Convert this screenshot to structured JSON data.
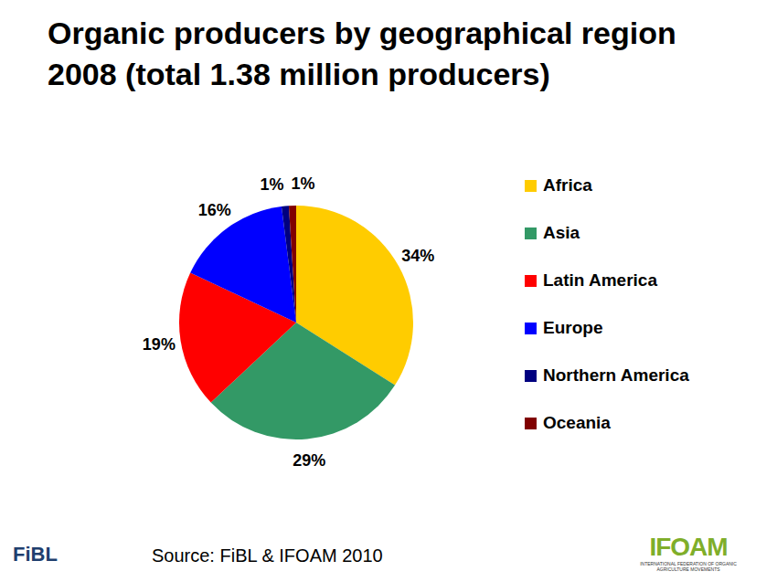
{
  "chart_data": {
    "type": "pie",
    "title": "Organic producers by geographical region 2008 (total 1.38 million producers)",
    "categories": [
      "Africa",
      "Asia",
      "Latin America",
      "Europe",
      "Northern America",
      "Oceania"
    ],
    "values": [
      34,
      29,
      19,
      16,
      1,
      1
    ],
    "value_labels": [
      "34%",
      "29%",
      "19%",
      "16%",
      "1%",
      "1%"
    ],
    "colors": [
      "#ffcc00",
      "#339966",
      "#ff0000",
      "#0000ff",
      "#000080",
      "#800000"
    ],
    "data_labels": true,
    "legend": "right",
    "source": "Source: FiBL & IFOAM 2010",
    "logos": [
      "FiBL",
      "IFOAM",
      "INTERNATIONAL FEDERATION OF ORGANIC AGRICULTURE MOVEMENTS"
    ]
  }
}
